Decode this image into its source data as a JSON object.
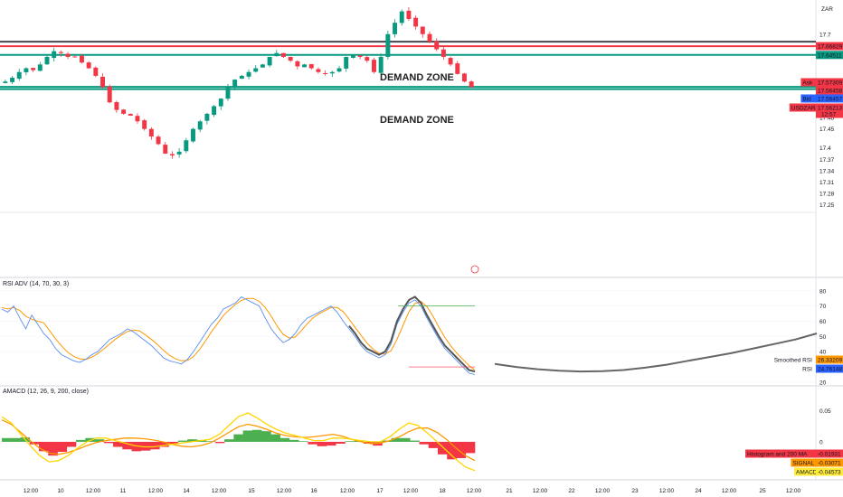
{
  "currency": "ZAR",
  "chart_data": [
    {
      "type": "candlestick",
      "symbol": "USDZAR",
      "y_ticks": [
        17.7,
        17.48,
        17.45,
        17.4,
        17.37,
        17.34,
        17.31,
        17.28,
        17.25
      ],
      "ylim": [
        17.23,
        17.79
      ],
      "x_ticks": [
        "12:00",
        "10",
        "12:00",
        "11",
        "12:00",
        "14",
        "12:00",
        "15",
        "12:00",
        "16",
        "12:00",
        "17",
        "12:00",
        "18",
        "12:00",
        "21",
        "12:00",
        "22",
        "12:00",
        "23",
        "12:00",
        "24",
        "12:00",
        "25",
        "12:00"
      ],
      "close_path": [
        17.575,
        17.585,
        17.6,
        17.61,
        17.605,
        17.62,
        17.64,
        17.655,
        17.65,
        17.64,
        17.64,
        17.625,
        17.61,
        17.59,
        17.56,
        17.52,
        17.5,
        17.49,
        17.485,
        17.47,
        17.45,
        17.43,
        17.41,
        17.385,
        17.38,
        17.39,
        17.42,
        17.45,
        17.47,
        17.49,
        17.51,
        17.53,
        17.56,
        17.58,
        17.59,
        17.6,
        17.61,
        17.62,
        17.64,
        17.65,
        17.64,
        17.63,
        17.615,
        17.62,
        17.61,
        17.6,
        17.595,
        17.6,
        17.61,
        17.64,
        17.645,
        17.64,
        17.63,
        17.6,
        17.64,
        17.7,
        17.73,
        17.76,
        17.74,
        17.72,
        17.7,
        17.68,
        17.66,
        17.64,
        17.62,
        17.595,
        17.575,
        17.56
      ],
      "horizontal_levels": [
        {
          "value": 17.66829,
          "color": "#f23645",
          "label": "17.66829"
        },
        {
          "value": 17.64511,
          "color": "#089981",
          "label": "17.64511"
        },
        {
          "value": 17.56101,
          "color": "#089981",
          "label": "17.56101"
        },
        {
          "value": 17.55494,
          "color": "#089981",
          "label": "17.55494"
        },
        {
          "value": 17.68,
          "color": "#434651",
          "label": ""
        }
      ],
      "price_tags": [
        {
          "label": "Ask",
          "value": "17.57309",
          "color": "#f23645"
        },
        {
          "label": "",
          "value": "17.56458",
          "color": "#f23645"
        },
        {
          "label": "Bid",
          "value": "17.56457",
          "color": "#2962ff"
        },
        {
          "label": "USDZAR",
          "value": "17.56213",
          "sub": "12:57",
          "color": "#f23645"
        }
      ],
      "zones": [
        {
          "label": "DEMAND ZONE"
        },
        {
          "label": "DEMAND ZONE"
        }
      ]
    },
    {
      "type": "line",
      "title": "RSI ADV (14, 70, 30, 3)",
      "y_ticks": [
        80.0,
        70.0,
        60.0,
        50.0,
        40.0,
        20.0
      ],
      "ylim": [
        17,
        87
      ],
      "series": [
        {
          "name": "RSI",
          "color": "#2962ff",
          "value_label": "24.76148"
        },
        {
          "name": "Smoothed RSI",
          "color": "#ff9800",
          "value_label": "26.33209"
        }
      ],
      "rsi_values": [
        68,
        66,
        70,
        62,
        55,
        64,
        58,
        52,
        48,
        42,
        38,
        36,
        34,
        33,
        35,
        38,
        40,
        44,
        48,
        50,
        52,
        55,
        53,
        50,
        47,
        44,
        40,
        36,
        34,
        33,
        32,
        35,
        40,
        46,
        52,
        58,
        62,
        68,
        70,
        72,
        76,
        74,
        72,
        70,
        62,
        55,
        50,
        46,
        48,
        52,
        58,
        62,
        64,
        66,
        68,
        70,
        66,
        60,
        55,
        50,
        44,
        40,
        38,
        36,
        38,
        45,
        58,
        66,
        72,
        74,
        70,
        62,
        55,
        48,
        42,
        38,
        34,
        30,
        26,
        25
      ],
      "smooth_line_values": [
        32,
        30,
        28.5,
        27.5,
        27,
        27.2,
        28,
        29.5,
        31.5,
        34,
        36.5,
        39,
        42,
        45,
        48,
        52
      ]
    },
    {
      "type": "bar",
      "title": "AMACD (12, 26, 9, 200, close)",
      "y_ticks": [
        0.05,
        0.0
      ],
      "ylim": [
        -0.052,
        0.085
      ],
      "series": [
        {
          "name": "Histogram and 200 MA",
          "value_label": "-0.01931"
        },
        {
          "name": "SIGNAL",
          "color": "#ff9800",
          "value_label": "-0.03071"
        },
        {
          "name": "AMACD",
          "color": "#ffeb3b",
          "value_label": "-0.04573"
        }
      ],
      "histogram": [
        0.006,
        0.006,
        0.007,
        -0.004,
        -0.015,
        -0.022,
        -0.016,
        -0.008,
        0.003,
        0.006,
        0.004,
        -0.002,
        -0.008,
        -0.012,
        -0.015,
        -0.014,
        -0.012,
        -0.008,
        -0.003,
        0.002,
        0.004,
        0.003,
        0.001,
        -0.002,
        0.004,
        0.012,
        0.018,
        0.019,
        0.017,
        0.012,
        0.006,
        0.003,
        0.001,
        -0.004,
        -0.007,
        -0.006,
        -0.003,
        0.001,
        0.002,
        -0.003,
        -0.006,
        0.002,
        0.006,
        0.006,
        0.002,
        -0.004,
        -0.01,
        -0.02,
        -0.028,
        -0.026,
        -0.018
      ],
      "signal": [
        0.035,
        0.028,
        0.015,
        0.002,
        -0.01,
        -0.018,
        -0.02,
        -0.017,
        -0.012,
        -0.006,
        -0.001,
        0.002,
        0.004,
        0.006,
        0.006,
        0.005,
        0.003,
        0.0,
        -0.004,
        -0.007,
        -0.008,
        -0.006,
        -0.002,
        0.006,
        0.015,
        0.024,
        0.028,
        0.025,
        0.02,
        0.014,
        0.01,
        0.008,
        0.007,
        0.008,
        0.01,
        0.012,
        0.009,
        0.004,
        0.0,
        -0.003,
        -0.002,
        0.002,
        0.008,
        0.016,
        0.022,
        0.022,
        0.015,
        0.004,
        -0.01,
        -0.022,
        -0.03
      ],
      "amacd": [
        0.04,
        0.03,
        0.012,
        -0.006,
        -0.022,
        -0.032,
        -0.03,
        -0.022,
        -0.01,
        0.0,
        0.006,
        0.006,
        0.002,
        -0.002,
        -0.006,
        -0.008,
        -0.008,
        -0.006,
        -0.004,
        -0.002,
        0.0,
        0.002,
        0.004,
        0.012,
        0.026,
        0.04,
        0.046,
        0.038,
        0.028,
        0.02,
        0.014,
        0.01,
        0.006,
        0.002,
        0.002,
        0.006,
        0.006,
        0.004,
        0.002,
        0.0,
        0.0,
        0.008,
        0.02,
        0.03,
        0.026,
        0.014,
        0.0,
        -0.014,
        -0.028,
        -0.04,
        -0.046
      ]
    }
  ]
}
